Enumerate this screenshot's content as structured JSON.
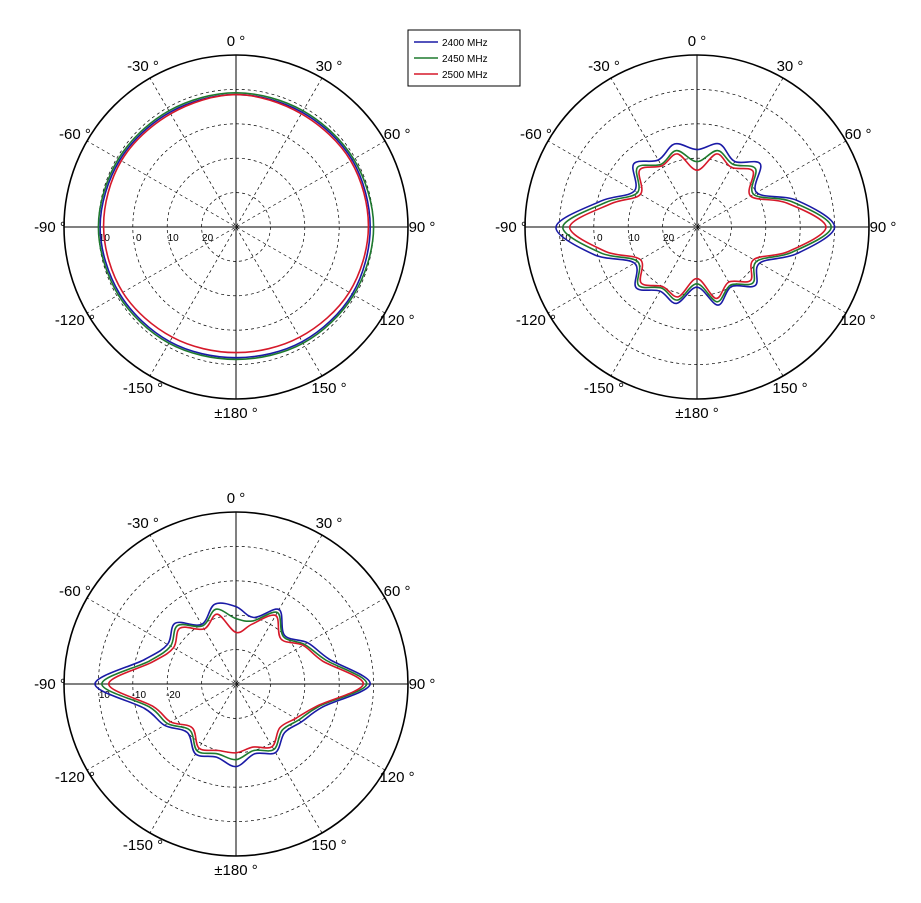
{
  "chart_data": [
    {
      "type": "polar-line",
      "angle_labels": [
        "0 °",
        "30 °",
        "60 °",
        "90 °",
        "120 °",
        "150 °",
        "±180 °",
        "-150 °",
        "-120 °",
        "-90 °",
        "-60 °",
        "-30 °"
      ],
      "radial_tick_labels": [
        "10",
        "0",
        "10",
        "20"
      ],
      "series": [
        {
          "name": "2400 MHz",
          "color": "#1a1aa6",
          "angles_deg": [
            0,
            30,
            60,
            90,
            120,
            150,
            180,
            -150,
            -120,
            -90,
            -60,
            -30
          ],
          "radius_frac": [
            0.77,
            0.77,
            0.78,
            0.78,
            0.78,
            0.77,
            0.76,
            0.77,
            0.78,
            0.79,
            0.78,
            0.77
          ]
        },
        {
          "name": "2450 MHz",
          "color": "#1e7a2e",
          "angles_deg": [
            0,
            30,
            60,
            90,
            120,
            150,
            180,
            -150,
            -120,
            -90,
            -60,
            -30
          ],
          "radius_frac": [
            0.78,
            0.78,
            0.79,
            0.8,
            0.79,
            0.78,
            0.77,
            0.78,
            0.79,
            0.8,
            0.79,
            0.78
          ]
        },
        {
          "name": "2500 MHz",
          "color": "#d6192a",
          "angles_deg": [
            0,
            30,
            60,
            90,
            120,
            150,
            180,
            -150,
            -120,
            -90,
            -60,
            -30
          ],
          "radius_frac": [
            0.77,
            0.76,
            0.77,
            0.77,
            0.76,
            0.74,
            0.73,
            0.74,
            0.76,
            0.77,
            0.77,
            0.76
          ]
        }
      ]
    },
    {
      "type": "polar-line",
      "angle_labels": [
        "0 °",
        "30 °",
        "60 °",
        "90 °",
        "120 °",
        "150 °",
        "±180 °",
        "-150 °",
        "-120 °",
        "-90 °",
        "-60 °",
        "-30 °"
      ],
      "radial_tick_labels": [
        "10",
        "0",
        "10",
        "20"
      ],
      "series": [
        {
          "name": "2400 MHz",
          "color": "#1a1aa6",
          "angles_deg": [
            0,
            15,
            30,
            45,
            60,
            75,
            90,
            105,
            120,
            135,
            150,
            165,
            180,
            -165,
            -150,
            -135,
            -120,
            -105,
            -90,
            -75,
            -60,
            -45,
            -30,
            -15
          ],
          "radius_frac": [
            0.45,
            0.5,
            0.44,
            0.52,
            0.4,
            0.6,
            0.8,
            0.6,
            0.42,
            0.48,
            0.4,
            0.47,
            0.35,
            0.46,
            0.43,
            0.5,
            0.42,
            0.62,
            0.82,
            0.58,
            0.42,
            0.52,
            0.45,
            0.5
          ]
        },
        {
          "name": "2450 MHz",
          "color": "#1e7a2e",
          "angles_deg": [
            0,
            15,
            30,
            45,
            60,
            75,
            90,
            105,
            120,
            135,
            150,
            165,
            180,
            -165,
            -150,
            -135,
            -120,
            -105,
            -90,
            -75,
            -60,
            -45,
            -30,
            -15
          ],
          "radius_frac": [
            0.38,
            0.46,
            0.42,
            0.48,
            0.38,
            0.57,
            0.78,
            0.57,
            0.4,
            0.46,
            0.39,
            0.45,
            0.33,
            0.44,
            0.41,
            0.48,
            0.4,
            0.58,
            0.78,
            0.55,
            0.4,
            0.49,
            0.42,
            0.46
          ]
        },
        {
          "name": "2500 MHz",
          "color": "#d6192a",
          "angles_deg": [
            0,
            15,
            30,
            45,
            60,
            75,
            90,
            105,
            120,
            135,
            150,
            165,
            180,
            -165,
            -150,
            -135,
            -120,
            -105,
            -90,
            -75,
            -60,
            -45,
            -30,
            -15
          ],
          "radius_frac": [
            0.33,
            0.44,
            0.4,
            0.46,
            0.36,
            0.54,
            0.75,
            0.55,
            0.38,
            0.44,
            0.37,
            0.43,
            0.3,
            0.42,
            0.4,
            0.46,
            0.38,
            0.55,
            0.74,
            0.52,
            0.38,
            0.47,
            0.41,
            0.44
          ]
        }
      ]
    },
    {
      "type": "polar-line",
      "angle_labels": [
        "0 °",
        "30 °",
        "60 °",
        "90 °",
        "120 °",
        "150 °",
        "±180 °",
        "-150 °",
        "-120 °",
        "-90 °",
        "-60 °",
        "-30 °"
      ],
      "radial_tick_labels": [
        "10",
        "-10",
        "-20"
      ],
      "series": [
        {
          "name": "2400 MHz",
          "color": "#1a1aa6",
          "angles_deg": [
            0,
            15,
            30,
            45,
            60,
            75,
            90,
            105,
            120,
            135,
            150,
            165,
            180,
            -165,
            -150,
            -135,
            -120,
            -105,
            -90,
            -75,
            -60,
            -45,
            -30,
            -15
          ],
          "radius_frac": [
            0.45,
            0.4,
            0.5,
            0.4,
            0.48,
            0.56,
            0.78,
            0.52,
            0.44,
            0.4,
            0.46,
            0.42,
            0.48,
            0.44,
            0.47,
            0.4,
            0.48,
            0.55,
            0.82,
            0.55,
            0.46,
            0.5,
            0.4,
            0.48
          ]
        },
        {
          "name": "2450 MHz",
          "color": "#1e7a2e",
          "angles_deg": [
            0,
            15,
            30,
            45,
            60,
            75,
            90,
            105,
            120,
            135,
            150,
            165,
            180,
            -165,
            -150,
            -135,
            -120,
            -105,
            -90,
            -75,
            -60,
            -45,
            -30,
            -15
          ],
          "radius_frac": [
            0.38,
            0.38,
            0.48,
            0.39,
            0.46,
            0.54,
            0.76,
            0.5,
            0.42,
            0.38,
            0.44,
            0.4,
            0.44,
            0.42,
            0.45,
            0.38,
            0.46,
            0.52,
            0.78,
            0.52,
            0.44,
            0.48,
            0.39,
            0.45
          ]
        },
        {
          "name": "2500 MHz",
          "color": "#d6192a",
          "angles_deg": [
            0,
            15,
            30,
            45,
            60,
            75,
            90,
            105,
            120,
            135,
            150,
            165,
            180,
            -165,
            -150,
            -135,
            -120,
            -105,
            -90,
            -75,
            -60,
            -45,
            -30,
            -15
          ],
          "radius_frac": [
            0.3,
            0.36,
            0.46,
            0.37,
            0.45,
            0.52,
            0.74,
            0.49,
            0.4,
            0.36,
            0.42,
            0.38,
            0.4,
            0.4,
            0.43,
            0.36,
            0.44,
            0.5,
            0.74,
            0.5,
            0.42,
            0.46,
            0.37,
            0.42
          ]
        }
      ]
    }
  ],
  "legend": {
    "placement": "top-center",
    "items": [
      {
        "label": "2400 MHz",
        "color": "#1a1aa6"
      },
      {
        "label": "2450 MHz",
        "color": "#1e7a2e"
      },
      {
        "label": "2500 MHz",
        "color": "#d6192a"
      }
    ]
  }
}
